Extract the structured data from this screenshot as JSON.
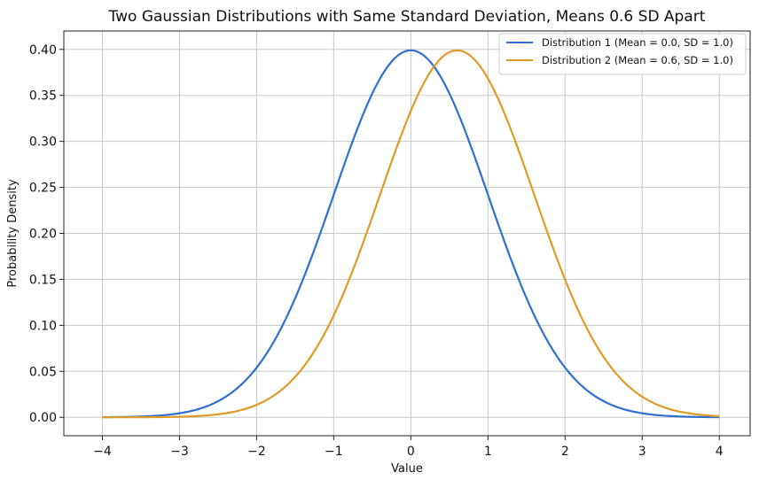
{
  "chart_data": {
    "type": "line",
    "title": "Two Gaussian Distributions with Same Standard Deviation, Means 0.6 SD Apart",
    "xlabel": "Value",
    "ylabel": "Probability Density",
    "xlim": [
      -4.5,
      4.4
    ],
    "ylim": [
      -0.02,
      0.42
    ],
    "xticks": [
      -4,
      -3,
      -2,
      -1,
      0,
      1,
      2,
      3,
      4
    ],
    "xtick_labels": [
      "−4",
      "−3",
      "−2",
      "−1",
      "0",
      "1",
      "2",
      "3",
      "4"
    ],
    "yticks": [
      0.0,
      0.05,
      0.1,
      0.15,
      0.2,
      0.25,
      0.3,
      0.35,
      0.4
    ],
    "ytick_labels": [
      "0.00",
      "0.05",
      "0.10",
      "0.15",
      "0.20",
      "0.25",
      "0.30",
      "0.35",
      "0.40"
    ],
    "grid": true,
    "legend_position": "top-right",
    "x_range": [
      -4,
      4
    ],
    "series": [
      {
        "name": "Distribution 1 (Mean = 0.0, SD = 1.0)",
        "mean": 0.0,
        "sd": 1.0,
        "color": "#2f6fd0"
      },
      {
        "name": "Distribution 2 (Mean = 0.6, SD = 1.0)",
        "mean": 0.6,
        "sd": 1.0,
        "color": "#e09b26"
      }
    ]
  }
}
